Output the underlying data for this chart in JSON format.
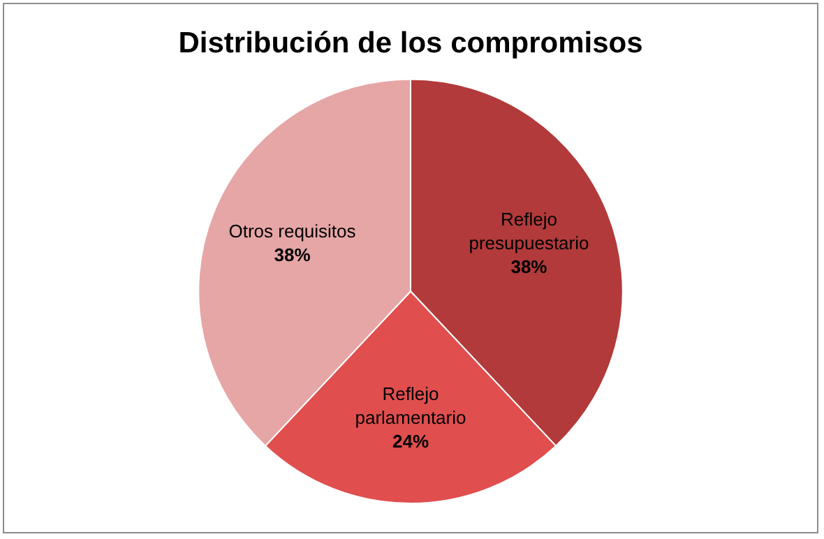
{
  "chart_data": {
    "type": "pie",
    "title": "Distribución de los compromisos",
    "categories": [
      "Reflejo presupuestario",
      "Reflejo parlamentario",
      "Otros requisitos"
    ],
    "values": [
      38,
      24,
      38
    ],
    "colors": [
      "#b23a3a",
      "#e04e4e",
      "#e6a6a6"
    ],
    "value_labels": [
      "38%",
      "24%",
      "38%"
    ],
    "legend": false
  }
}
